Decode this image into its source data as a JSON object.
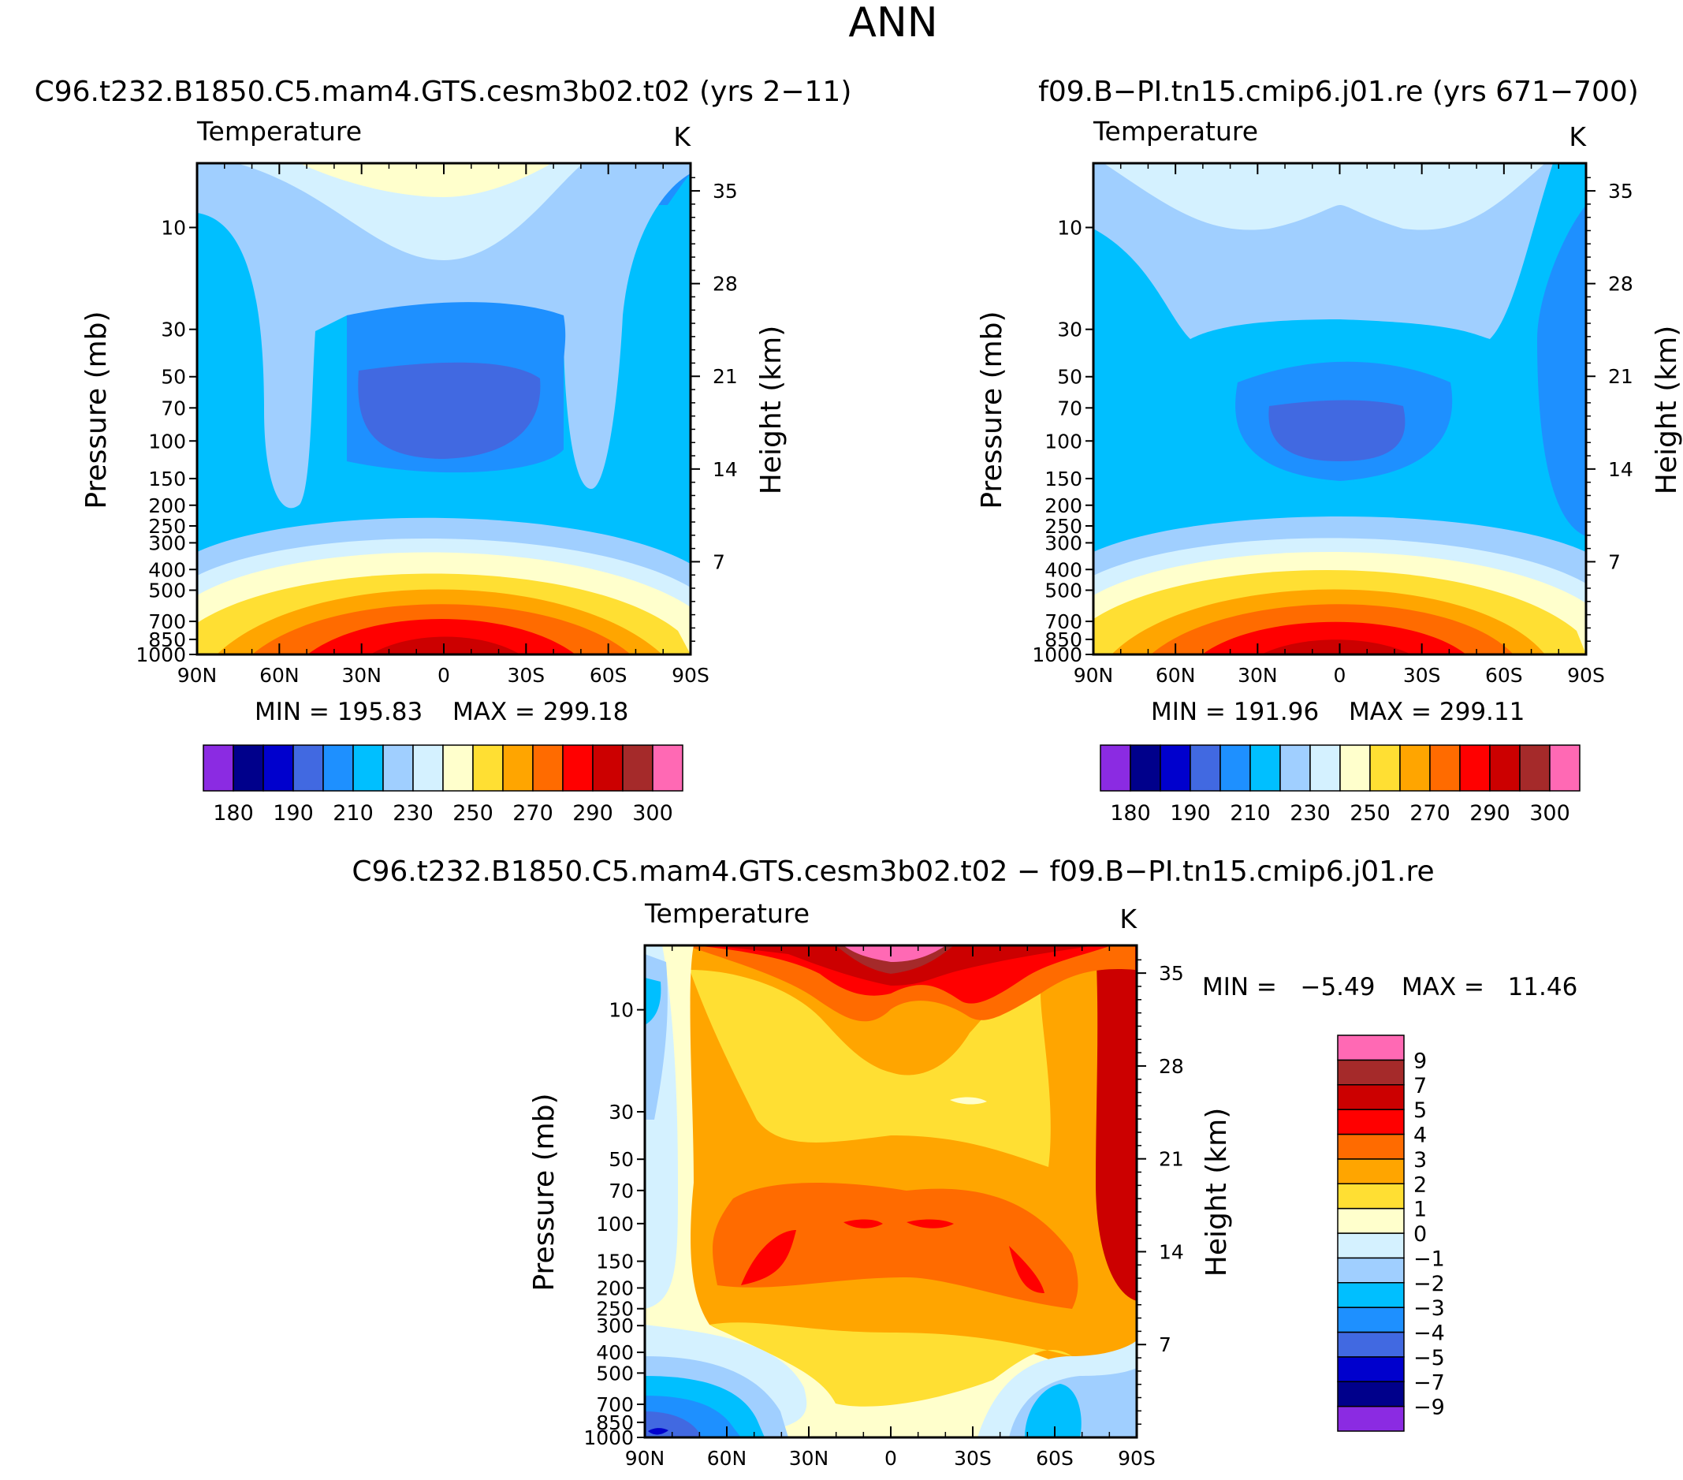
{
  "figure": {
    "title": "ANN"
  },
  "chart_data": [
    {
      "type": "heatmap",
      "title": "C96.t232.B1850.C5.mam4.GTS.cesm3b02.t02 (yrs 2−11)",
      "variable_label": "Temperature",
      "units": "K",
      "xlabel": "",
      "ylabel": "Pressure (mb)",
      "y2label": "Height (km)",
      "x_ticks": [
        "90N",
        "60N",
        "30N",
        "0",
        "30S",
        "60S",
        "90S"
      ],
      "x_tick_values": [
        90,
        60,
        30,
        0,
        -30,
        -60,
        -90
      ],
      "xlim": [
        90,
        -90
      ],
      "y_scale": "log",
      "ylim": [
        1000,
        5
      ],
      "y_ticks": [
        "10",
        "30",
        "50",
        "70",
        "100",
        "150",
        "200",
        "250",
        "300",
        "400",
        "500",
        "700",
        "850",
        "1000"
      ],
      "y_tick_values": [
        10,
        30,
        50,
        70,
        100,
        150,
        200,
        250,
        300,
        400,
        500,
        700,
        850,
        1000
      ],
      "y2_ticks": [
        "35",
        "28",
        "21",
        "14",
        "7"
      ],
      "y2_tick_values": [
        35,
        28,
        21,
        14,
        7
      ],
      "min_label": "MIN = 195.83",
      "max_label": "MAX = 299.18",
      "stats": {
        "min": 195.83,
        "max": 299.18
      },
      "colorbar": {
        "orientation": "horizontal",
        "levels": [
          180,
          185,
          190,
          200,
          210,
          220,
          230,
          240,
          250,
          260,
          270,
          280,
          290,
          295,
          300
        ],
        "labels": [
          "180",
          "190",
          "210",
          "230",
          "250",
          "270",
          "290",
          "300"
        ],
        "label_values": [
          180,
          190,
          210,
          230,
          250,
          270,
          290,
          300
        ],
        "colors": [
          "#8b2be2",
          "#00008b",
          "#0000cd",
          "#4169e1",
          "#1e90ff",
          "#00bfff",
          "#a0cfff",
          "#d4f1ff",
          "#ffffcc",
          "#ffdf33",
          "#ffa500",
          "#ff6b00",
          "#ff0000",
          "#cc0000",
          "#a52a2a",
          "#ff69b4"
        ]
      }
    },
    {
      "type": "heatmap",
      "title": "f09.B−PI.tn15.cmip6.j01.re (yrs 671−700)",
      "variable_label": "Temperature",
      "units": "K",
      "xlabel": "",
      "ylabel": "Pressure (mb)",
      "y2label": "Height (km)",
      "x_ticks": [
        "90N",
        "60N",
        "30N",
        "0",
        "30S",
        "60S",
        "90S"
      ],
      "x_tick_values": [
        90,
        60,
        30,
        0,
        -30,
        -60,
        -90
      ],
      "xlim": [
        90,
        -90
      ],
      "y_scale": "log",
      "ylim": [
        1000,
        5
      ],
      "y_ticks": [
        "10",
        "30",
        "50",
        "70",
        "100",
        "150",
        "200",
        "250",
        "300",
        "400",
        "500",
        "700",
        "850",
        "1000"
      ],
      "y_tick_values": [
        10,
        30,
        50,
        70,
        100,
        150,
        200,
        250,
        300,
        400,
        500,
        700,
        850,
        1000
      ],
      "y2_ticks": [
        "35",
        "28",
        "21",
        "14",
        "7"
      ],
      "y2_tick_values": [
        35,
        28,
        21,
        14,
        7
      ],
      "min_label": "MIN = 191.96",
      "max_label": "MAX = 299.11",
      "stats": {
        "min": 191.96,
        "max": 299.11
      },
      "colorbar": {
        "orientation": "horizontal",
        "levels": [
          180,
          185,
          190,
          200,
          210,
          220,
          230,
          240,
          250,
          260,
          270,
          280,
          290,
          295,
          300
        ],
        "labels": [
          "180",
          "190",
          "210",
          "230",
          "250",
          "270",
          "290",
          "300"
        ],
        "label_values": [
          180,
          190,
          210,
          230,
          250,
          270,
          290,
          300
        ],
        "colors": [
          "#8b2be2",
          "#00008b",
          "#0000cd",
          "#4169e1",
          "#1e90ff",
          "#00bfff",
          "#a0cfff",
          "#d4f1ff",
          "#ffffcc",
          "#ffdf33",
          "#ffa500",
          "#ff6b00",
          "#ff0000",
          "#cc0000",
          "#a52a2a",
          "#ff69b4"
        ]
      }
    },
    {
      "type": "heatmap",
      "title": "C96.t232.B1850.C5.mam4.GTS.cesm3b02.t02 − f09.B−PI.tn15.cmip6.j01.re",
      "variable_label": "Temperature",
      "units": "K",
      "xlabel": "",
      "ylabel": "Pressure (mb)",
      "y2label": "Height (km)",
      "x_ticks": [
        "90N",
        "60N",
        "30N",
        "0",
        "30S",
        "60S",
        "90S"
      ],
      "x_tick_values": [
        90,
        60,
        30,
        0,
        -30,
        -60,
        -90
      ],
      "xlim": [
        90,
        -90
      ],
      "y_scale": "log",
      "ylim": [
        1000,
        5
      ],
      "y_ticks": [
        "10",
        "30",
        "50",
        "70",
        "100",
        "150",
        "200",
        "250",
        "300",
        "400",
        "500",
        "700",
        "850",
        "1000"
      ],
      "y_tick_values": [
        10,
        30,
        50,
        70,
        100,
        150,
        200,
        250,
        300,
        400,
        500,
        700,
        850,
        1000
      ],
      "y2_ticks": [
        "35",
        "28",
        "21",
        "14",
        "7"
      ],
      "y2_tick_values": [
        35,
        28,
        21,
        14,
        7
      ],
      "min_text": "MIN =   −5.49",
      "max_text": "MAX =   11.46",
      "stats": {
        "min": -5.49,
        "max": 11.46
      },
      "colorbar": {
        "orientation": "vertical",
        "levels": [
          -9,
          -7,
          -5,
          -4,
          -3,
          -2,
          -1,
          0,
          1,
          2,
          3,
          4,
          5,
          7,
          9
        ],
        "labels": [
          "9",
          "7",
          "5",
          "4",
          "3",
          "2",
          "1",
          "0",
          "−1",
          "−2",
          "−3",
          "−4",
          "−5",
          "−7",
          "−9"
        ],
        "label_values": [
          9,
          7,
          5,
          4,
          3,
          2,
          1,
          0,
          -1,
          -2,
          -3,
          -4,
          -5,
          -7,
          -9
        ],
        "colors": [
          "#8b2be2",
          "#00008b",
          "#0000cd",
          "#4169e1",
          "#1e90ff",
          "#00bfff",
          "#a0cfff",
          "#d4f1ff",
          "#ffffcc",
          "#ffdf33",
          "#ffa500",
          "#ff6b00",
          "#ff0000",
          "#cc0000",
          "#a52a2a",
          "#ff69b4"
        ]
      }
    }
  ]
}
